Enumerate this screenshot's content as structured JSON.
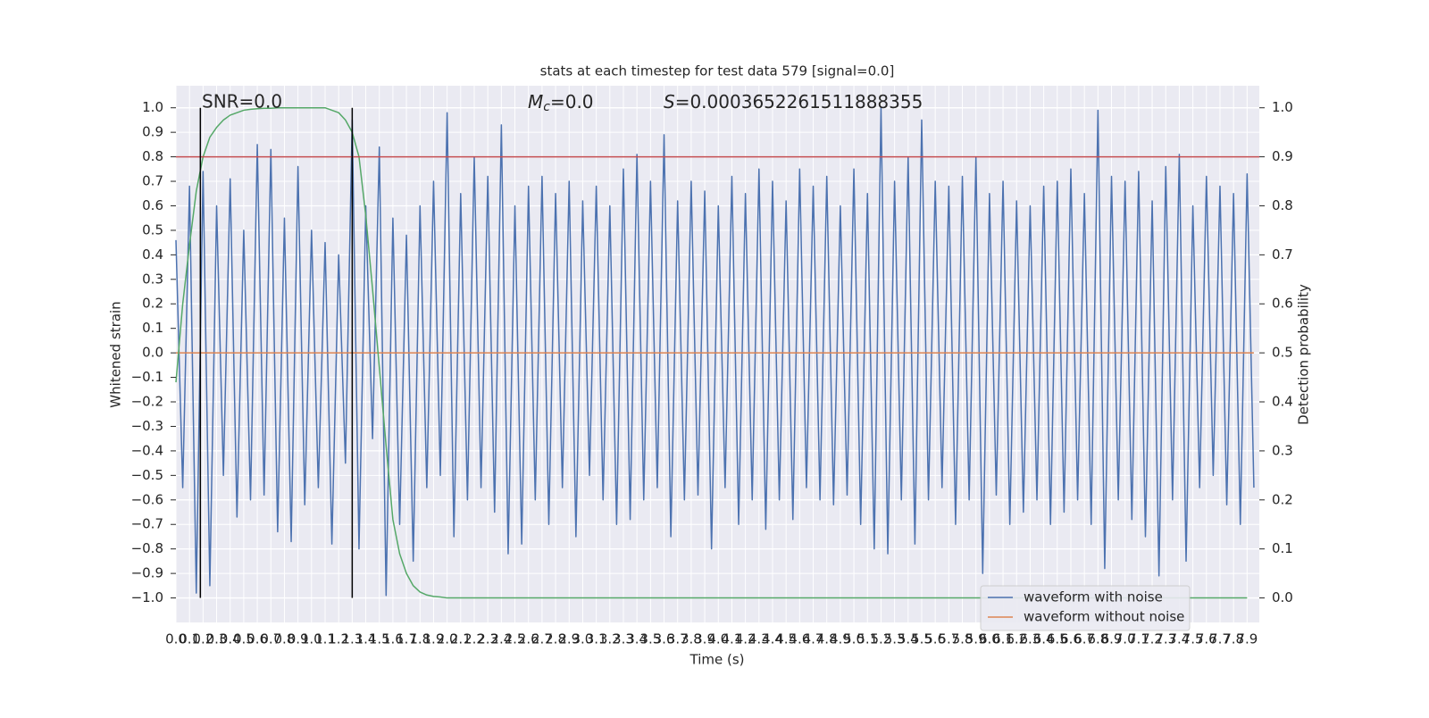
{
  "chart_data": {
    "type": "line",
    "title": "stats at each timestep for test data 579 [signal=0.0]",
    "x_label": "Time (s)",
    "y_label": "Whitened strain",
    "y2_label": "Detection probability",
    "annotations": [
      {
        "text": "SNR=0.0"
      },
      {
        "symbol": "M",
        "subscript": "c",
        "text": "=0.0"
      },
      {
        "symbol": "S",
        "text": "=0.0003652261511888355"
      }
    ],
    "xlim": [
      0,
      7.99
    ],
    "ylim": [
      -1.1,
      1.09
    ],
    "y2lim": [
      -0.05,
      1.045
    ],
    "grid": true,
    "legend": "lower right",
    "xticks": [
      {
        "value": 0,
        "label": "0.0"
      },
      0.1,
      0.2,
      0.3,
      0.4,
      0.5,
      0.6,
      0.7,
      0.8,
      0.9,
      {
        "value": 1,
        "label": "1.0"
      },
      1.1,
      1.2,
      1.3,
      1.4,
      1.5,
      1.6,
      1.7,
      1.8,
      1.9,
      {
        "value": 2,
        "label": "2.0"
      },
      2.1,
      2.2,
      2.3,
      2.4,
      2.5,
      2.6,
      2.7,
      2.8,
      2.9,
      {
        "value": 3,
        "label": "3.0"
      },
      3.1,
      3.2,
      3.3,
      3.4,
      3.5,
      3.6,
      3.7,
      3.8,
      3.9,
      {
        "value": 4,
        "label": "4.0"
      },
      4.1,
      4.2,
      4.3,
      4.4,
      4.5,
      4.6,
      4.7,
      4.8,
      4.9,
      {
        "value": 5,
        "label": "5.0"
      },
      5.1,
      5.2,
      5.3,
      5.4,
      5.5,
      5.6,
      5.7,
      5.8,
      5.9,
      {
        "value": 6,
        "label": "6.0"
      },
      6.1,
      6.2,
      6.3,
      6.4,
      6.5,
      6.6,
      6.7,
      6.8,
      6.9,
      {
        "value": 7,
        "label": "7.0"
      },
      7.1,
      7.2,
      7.3,
      7.4,
      7.5,
      7.6,
      7.7,
      7.8,
      7.9
    ],
    "yticks": [
      {
        "value": 1,
        "label": "1.0"
      },
      0.9,
      0.8,
      0.7,
      0.6,
      0.5,
      0.4,
      0.3,
      0.2,
      0.1,
      {
        "value": 0,
        "label": "0.0"
      },
      {
        "value": -0.1,
        "label": "−0.1"
      },
      {
        "value": -0.2,
        "label": "−0.2"
      },
      {
        "value": -0.3,
        "label": "−0.3"
      },
      {
        "value": -0.4,
        "label": "−0.4"
      },
      {
        "value": -0.5,
        "label": "−0.5"
      },
      {
        "value": -0.6,
        "label": "−0.6"
      },
      {
        "value": -0.7,
        "label": "−0.7"
      },
      {
        "value": -0.8,
        "label": "−0.8"
      },
      {
        "value": -0.9,
        "label": "−0.9"
      },
      {
        "value": -1,
        "label": "−1.0"
      }
    ],
    "y2ticks": [
      {
        "value": 1,
        "label": "1.0"
      },
      0.9,
      0.8,
      0.7,
      0.6,
      0.5,
      0.4,
      0.3,
      0.2,
      0.1,
      {
        "value": 0,
        "label": "0.0"
      }
    ],
    "threshold": {
      "value": 0.9,
      "axis": "y2",
      "color": "#c44e52"
    },
    "vlines": {
      "x": [
        0.18,
        1.3
      ],
      "ymin": -1,
      "ymax": 1,
      "color": "#000000"
    },
    "series": [
      {
        "name": "waveform with noise",
        "color": "#4c72b0",
        "x": [
          0,
          0.05,
          0.1,
          0.15,
          0.2,
          0.25,
          0.3,
          0.35,
          0.4,
          0.45,
          0.5,
          0.55,
          0.6,
          0.65,
          0.7,
          0.75,
          0.8,
          0.85,
          0.9,
          0.95,
          1,
          1.05,
          1.1,
          1.15,
          1.2,
          1.25,
          1.3,
          1.35,
          1.4,
          1.45,
          1.5,
          1.55,
          1.6,
          1.65,
          1.7,
          1.75,
          1.8,
          1.85,
          1.9,
          1.95,
          2,
          2.05,
          2.1,
          2.15,
          2.2,
          2.25,
          2.3,
          2.35,
          2.4,
          2.45,
          2.5,
          2.55,
          2.6,
          2.65,
          2.7,
          2.75,
          2.8,
          2.85,
          2.9,
          2.95,
          3,
          3.05,
          3.1,
          3.15,
          3.2,
          3.25,
          3.3,
          3.35,
          3.4,
          3.45,
          3.5,
          3.55,
          3.6,
          3.65,
          3.7,
          3.75,
          3.8,
          3.85,
          3.9,
          3.95,
          4,
          4.05,
          4.1,
          4.15,
          4.2,
          4.25,
          4.3,
          4.35,
          4.4,
          4.45,
          4.5,
          4.55,
          4.6,
          4.65,
          4.7,
          4.75,
          4.8,
          4.85,
          4.9,
          4.95,
          5,
          5.05,
          5.1,
          5.15,
          5.2,
          5.25,
          5.3,
          5.35,
          5.4,
          5.45,
          5.5,
          5.55,
          5.6,
          5.65,
          5.7,
          5.75,
          5.8,
          5.85,
          5.9,
          5.95,
          6,
          6.05,
          6.1,
          6.15,
          6.2,
          6.25,
          6.3,
          6.35,
          6.4,
          6.45,
          6.5,
          6.55,
          6.6,
          6.65,
          6.7,
          6.75,
          6.8,
          6.85,
          6.9,
          6.95,
          7,
          7.05,
          7.1,
          7.15,
          7.2,
          7.25,
          7.3,
          7.35,
          7.4,
          7.45,
          7.5,
          7.55,
          7.6,
          7.65,
          7.7,
          7.75,
          7.8,
          7.85,
          7.9,
          7.95
        ],
        "values": [
          0.46,
          -0.55,
          0.68,
          -0.98,
          0.74,
          -0.95,
          0.6,
          -0.5,
          0.71,
          -0.67,
          0.5,
          -0.6,
          0.85,
          -0.58,
          0.83,
          -0.73,
          0.55,
          -0.77,
          0.76,
          -0.62,
          0.5,
          -0.55,
          0.45,
          -0.78,
          0.4,
          -0.45,
          0.95,
          -0.8,
          0.6,
          -0.35,
          0.84,
          -0.99,
          0.55,
          -0.7,
          0.48,
          -0.85,
          0.6,
          -0.55,
          0.7,
          -0.5,
          0.98,
          -0.75,
          0.65,
          -0.6,
          0.8,
          -0.55,
          0.72,
          -0.65,
          0.93,
          -0.82,
          0.6,
          -0.78,
          0.68,
          -0.6,
          0.72,
          -0.7,
          0.65,
          -0.55,
          0.7,
          -0.75,
          0.62,
          -0.5,
          0.68,
          -0.6,
          0.6,
          -0.7,
          0.75,
          -0.68,
          0.81,
          -0.6,
          0.7,
          -0.55,
          0.89,
          -0.75,
          0.62,
          -0.6,
          0.7,
          -0.58,
          0.66,
          -0.8,
          0.6,
          -0.55,
          0.72,
          -0.7,
          0.65,
          -0.6,
          0.75,
          -0.72,
          0.7,
          -0.6,
          0.62,
          -0.68,
          0.75,
          -0.55,
          0.68,
          -0.6,
          0.72,
          -0.62,
          0.6,
          -0.58,
          0.75,
          -0.7,
          0.65,
          -0.8,
          1.0,
          -0.82,
          0.7,
          -0.6,
          0.8,
          -0.78,
          0.95,
          -0.6,
          0.7,
          -0.55,
          0.68,
          -0.7,
          0.72,
          -0.6,
          0.8,
          -0.9,
          0.65,
          -0.58,
          0.7,
          -0.7,
          0.62,
          -0.65,
          0.6,
          -0.6,
          0.68,
          -0.7,
          0.7,
          -0.65,
          0.75,
          -0.6,
          0.65,
          -0.7,
          0.99,
          -0.88,
          0.72,
          -0.6,
          0.7,
          -0.68,
          0.74,
          -0.75,
          0.62,
          -0.91,
          0.76,
          -0.6,
          0.81,
          -0.85,
          0.6,
          -0.55,
          0.72,
          -0.5,
          0.68,
          -0.62,
          0.65,
          -0.7,
          0.73,
          -0.55
        ]
      },
      {
        "name": "waveform without noise",
        "color": "#dd8452",
        "x": [
          0,
          7.95
        ],
        "values": [
          0,
          0
        ]
      },
      {
        "color": "#55a868",
        "axis": "y2",
        "x": [
          0,
          0.05,
          0.1,
          0.15,
          0.2,
          0.25,
          0.3,
          0.35,
          0.4,
          0.45,
          0.5,
          0.55,
          0.6,
          0.65,
          0.7,
          0.75,
          0.8,
          0.85,
          0.9,
          0.95,
          1,
          1.05,
          1.1,
          1.15,
          1.2,
          1.25,
          1.3,
          1.35,
          1.4,
          1.45,
          1.5,
          1.55,
          1.6,
          1.65,
          1.7,
          1.75,
          1.8,
          1.85,
          1.9,
          1.95,
          2,
          3,
          4,
          5,
          6,
          7,
          7.9
        ],
        "values": [
          0.44,
          0.6,
          0.72,
          0.83,
          0.9,
          0.94,
          0.96,
          0.975,
          0.985,
          0.99,
          0.995,
          0.997,
          0.998,
          0.999,
          0.999,
          1,
          1,
          1,
          1,
          1,
          1,
          1,
          1,
          0.995,
          0.99,
          0.975,
          0.95,
          0.9,
          0.78,
          0.63,
          0.47,
          0.31,
          0.16,
          0.09,
          0.05,
          0.025,
          0.012,
          0.006,
          0.003,
          0.002,
          0,
          0,
          0,
          0,
          0,
          0,
          0
        ]
      }
    ]
  }
}
